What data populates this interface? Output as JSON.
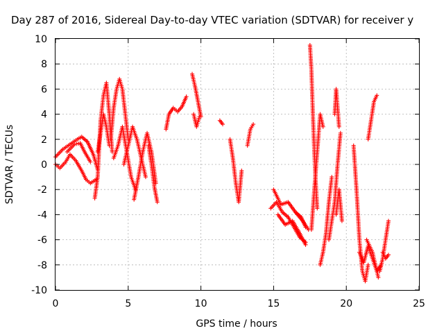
{
  "chart_data": {
    "type": "scatter",
    "title": "Day 287 of 2016, Sidereal Day-to-day VTEC variation (SDTVAR) for receiver y",
    "xlabel": "GPS time / hours",
    "ylabel": "SDTVAR / TECUs",
    "xlim": [
      0,
      25
    ],
    "ylim": [
      -10,
      10
    ],
    "xticks": [
      0,
      5,
      10,
      15,
      20,
      25
    ],
    "yticks": [
      -10,
      -8,
      -6,
      -4,
      -2,
      0,
      2,
      4,
      6,
      8,
      10
    ],
    "xtick_labels": [
      "0",
      "5",
      "10",
      "15",
      "20",
      "25"
    ],
    "ytick_labels": [
      "-10",
      "-8",
      "-6",
      "-4",
      "-2",
      "0",
      "2",
      "4",
      "6",
      "8",
      "10"
    ],
    "grid": true,
    "marker": "+",
    "color": "#ff0000",
    "series": [
      {
        "name": "SDTVAR",
        "segments": [
          {
            "x": [
              0,
              0.5,
              1.0,
              1.5,
              1.8,
              2.2,
              2.6,
              2.9
            ],
            "y": [
              0.6,
              1.2,
              1.6,
              2.0,
              2.2,
              1.8,
              0.8,
              -0.4
            ]
          },
          {
            "x": [
              0,
              0.3,
              0.7,
              1.0,
              1.4,
              1.8,
              2.1,
              2.4,
              2.8
            ],
            "y": [
              0.0,
              -0.3,
              0.2,
              0.8,
              0.3,
              -0.5,
              -1.2,
              -1.5,
              -1.2
            ]
          },
          {
            "x": [
              0.8,
              1.3,
              1.7,
              2.0,
              2.4
            ],
            "y": [
              1.0,
              1.6,
              1.7,
              1.0,
              0.2
            ]
          },
          {
            "x": [
              2.7,
              2.9,
              3.1,
              3.3,
              3.5,
              3.7,
              3.9
            ],
            "y": [
              -2.7,
              -1.0,
              3.5,
              5.5,
              6.5,
              4.0,
              1.0
            ]
          },
          {
            "x": [
              2.9,
              3.1,
              3.3,
              3.5,
              3.7
            ],
            "y": [
              1.0,
              2.5,
              4.0,
              3.0,
              1.5
            ]
          },
          {
            "x": [
              3.8,
              4.0,
              4.2,
              4.4,
              4.6,
              4.8,
              5.0
            ],
            "y": [
              2.0,
              4.5,
              6.0,
              6.8,
              6.0,
              4.0,
              2.0
            ]
          },
          {
            "x": [
              4.0,
              4.3,
              4.6,
              4.9,
              5.2,
              5.5
            ],
            "y": [
              0.5,
              1.5,
              3.0,
              1.0,
              -1.0,
              -2.0
            ]
          },
          {
            "x": [
              4.7,
              5.0,
              5.3,
              5.6,
              5.9,
              6.2
            ],
            "y": [
              0.0,
              1.5,
              3.0,
              2.0,
              0.5,
              -1.0
            ]
          },
          {
            "x": [
              5.4,
              5.7,
              6.0,
              6.3,
              6.6,
              6.9
            ],
            "y": [
              -2.8,
              -1.0,
              1.0,
              2.5,
              1.0,
              -1.5
            ]
          },
          {
            "x": [
              6.4,
              6.6,
              6.8,
              7.0
            ],
            "y": [
              1.5,
              0.0,
              -1.8,
              -3.0
            ]
          },
          {
            "x": [
              7.6,
              7.8,
              8.1,
              8.4,
              8.7,
              9.0
            ],
            "y": [
              2.8,
              4.0,
              4.5,
              4.2,
              4.6,
              5.4
            ]
          },
          {
            "x": [
              9.4,
              9.6,
              9.8,
              10.0
            ],
            "y": [
              7.2,
              6.2,
              5.0,
              3.8
            ]
          },
          {
            "x": [
              9.5,
              9.7,
              9.9
            ],
            "y": [
              4.0,
              3.0,
              3.8
            ]
          },
          {
            "x": [
              11.3,
              11.5
            ],
            "y": [
              3.5,
              3.2
            ]
          },
          {
            "x": [
              12.0,
              12.2,
              12.4,
              12.6,
              12.8
            ],
            "y": [
              2.0,
              0.5,
              -1.5,
              -3.0,
              -0.5
            ]
          },
          {
            "x": [
              13.2,
              13.4,
              13.6
            ],
            "y": [
              1.5,
              2.8,
              3.2
            ]
          },
          {
            "x": [
              14.8,
              15.2,
              15.6,
              16.0,
              16.4,
              16.8,
              17.2
            ],
            "y": [
              -3.5,
              -3.0,
              -3.8,
              -4.2,
              -5.0,
              -5.8,
              -6.2
            ]
          },
          {
            "x": [
              15.0,
              15.5,
              16.0,
              16.5,
              17.0,
              17.4
            ],
            "y": [
              -2.0,
              -3.2,
              -3.0,
              -3.8,
              -4.5,
              -5.2
            ]
          },
          {
            "x": [
              15.3,
              15.8,
              16.3,
              16.8,
              17.2
            ],
            "y": [
              -4.0,
              -4.8,
              -4.5,
              -5.5,
              -6.4
            ]
          },
          {
            "x": [
              16.5,
              16.9,
              17.2
            ],
            "y": [
              -3.8,
              -4.2,
              -5.0
            ]
          },
          {
            "x": [
              17.5,
              17.6,
              17.7,
              17.8,
              17.9,
              18.0
            ],
            "y": [
              9.5,
              7.5,
              4.0,
              1.0,
              -1.5,
              -3.5
            ]
          },
          {
            "x": [
              17.6,
              17.8,
              18.0,
              18.2,
              18.4
            ],
            "y": [
              -5.2,
              -2.0,
              1.0,
              4.0,
              3.0
            ]
          },
          {
            "x": [
              18.2,
              18.4,
              18.6,
              18.8,
              19.0
            ],
            "y": [
              -8.0,
              -7.0,
              -5.5,
              -3.0,
              -1.0
            ]
          },
          {
            "x": [
              18.8,
              19.0,
              19.2,
              19.4,
              19.6
            ],
            "y": [
              -6.0,
              -4.5,
              -3.0,
              0.0,
              2.5
            ]
          },
          {
            "x": [
              19.2,
              19.3,
              19.5
            ],
            "y": [
              4.0,
              6.0,
              3.0
            ]
          },
          {
            "x": [
              19.3,
              19.5,
              19.7
            ],
            "y": [
              -4.0,
              -2.0,
              -4.5
            ]
          },
          {
            "x": [
              20.5,
              20.7,
              20.9,
              21.1,
              21.3,
              21.5
            ],
            "y": [
              1.5,
              -2.0,
              -6.0,
              -8.5,
              -9.3,
              -8.0
            ]
          },
          {
            "x": [
              20.9,
              21.2,
              21.5,
              21.8,
              22.1,
              22.4
            ],
            "y": [
              -7.0,
              -7.8,
              -6.5,
              -7.5,
              -8.5,
              -8.0
            ]
          },
          {
            "x": [
              21.4,
              21.6,
              21.8,
              22.0,
              22.2
            ],
            "y": [
              -6.0,
              -6.5,
              -7.0,
              -8.0,
              -9.0
            ]
          },
          {
            "x": [
              21.5,
              21.7,
              21.9,
              22.1
            ],
            "y": [
              2.0,
              3.5,
              5.0,
              5.5
            ]
          },
          {
            "x": [
              22.3,
              22.5,
              22.7,
              22.9
            ],
            "y": [
              -8.5,
              -7.5,
              -6.0,
              -4.5
            ]
          },
          {
            "x": [
              22.5,
              22.7,
              22.9
            ],
            "y": [
              -7.0,
              -7.5,
              -7.2
            ]
          }
        ]
      }
    ]
  }
}
